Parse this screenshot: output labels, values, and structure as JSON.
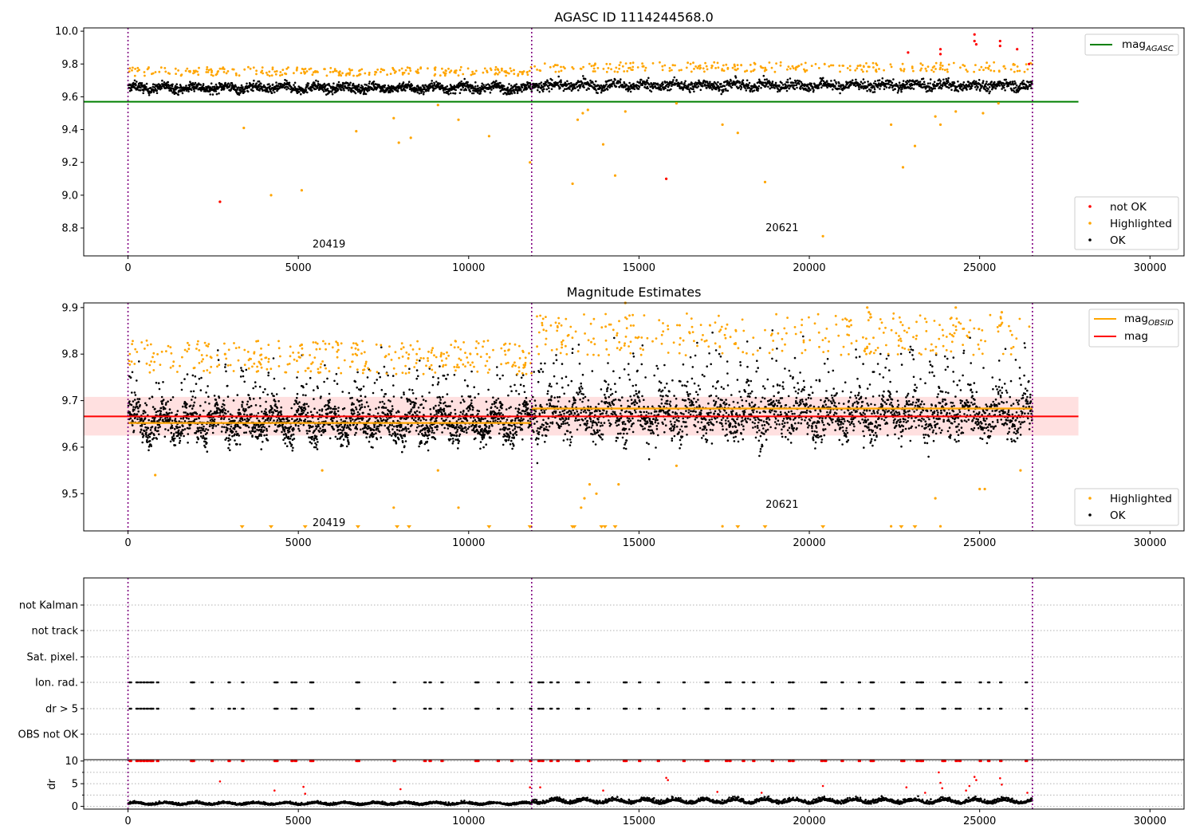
{
  "figure": {
    "title": "AGASC ID 1114244568.0"
  },
  "chart_data": [
    {
      "id": "agasc-magnitude",
      "type": "scatter",
      "title": "AGASC ID 1114244568.0",
      "xlim": [
        -1300,
        31000
      ],
      "ylim": [
        8.63,
        10.02
      ],
      "x_ticks": [
        0,
        5000,
        10000,
        15000,
        20000,
        25000,
        30000
      ],
      "y_ticks": [
        8.8,
        9.0,
        9.2,
        9.4,
        9.6,
        9.8,
        10.0
      ],
      "obsid_boundaries": [
        0,
        11850,
        26550
      ],
      "obsid_labels": [
        {
          "text": "20419",
          "x": 5900,
          "y": 8.68
        },
        {
          "text": "20621",
          "x": 19200,
          "y": 8.78
        }
      ],
      "mag_agasc": {
        "value": 9.57,
        "x_range": [
          -1300,
          27900
        ],
        "color": "#008000"
      },
      "ok_band": [
        {
          "x_range": [
            0,
            11850
          ],
          "center": 9.655,
          "spread": 0.045
        },
        {
          "x_range": [
            11850,
            26550
          ],
          "center": 9.67,
          "spread": 0.05
        }
      ],
      "highlighted_points": {
        "x": [
          2700,
          3400,
          4200,
          5100,
          6700,
          7800,
          7950,
          8300,
          9100,
          9700,
          10600,
          11800,
          13050,
          13200,
          13350,
          13500,
          13950,
          14300,
          14600,
          15800,
          16100,
          17450,
          17900,
          18700,
          20400,
          22400,
          22750,
          23100,
          23700,
          23850,
          24300,
          25100,
          25550
        ],
        "y": [
          8.96,
          9.41,
          9.0,
          9.03,
          9.39,
          9.47,
          9.32,
          9.35,
          9.55,
          9.46,
          9.36,
          9.2,
          9.07,
          9.46,
          9.5,
          9.52,
          9.31,
          9.12,
          9.51,
          9.1,
          9.56,
          9.43,
          9.38,
          9.08,
          8.75,
          9.43,
          9.17,
          9.3,
          9.48,
          9.43,
          9.51,
          9.5,
          9.56
        ]
      },
      "not_ok_points": {
        "x": [
          2700,
          15800,
          22900,
          23850,
          23850,
          24850,
          24850,
          24900,
          25600,
          25600,
          26100,
          26450
        ],
        "y": [
          8.96,
          9.1,
          9.87,
          9.89,
          9.86,
          9.98,
          9.94,
          9.92,
          9.94,
          9.91,
          9.89,
          9.8
        ]
      },
      "legend_lines": [
        {
          "label": "mag",
          "subscript": "AGASC",
          "color": "#008000"
        }
      ],
      "legend_markers": [
        {
          "label": "not OK",
          "color": "#ff0000"
        },
        {
          "label": "Highlighted",
          "color": "#ffa500"
        },
        {
          "label": "OK",
          "color": "#000000"
        }
      ]
    },
    {
      "id": "magnitude-estimates",
      "type": "scatter",
      "title": "Magnitude Estimates",
      "xlim": [
        -1300,
        31000
      ],
      "ylim": [
        9.42,
        9.91
      ],
      "x_ticks": [
        0,
        5000,
        10000,
        15000,
        20000,
        25000,
        30000
      ],
      "y_ticks": [
        9.5,
        9.6,
        9.7,
        9.8,
        9.9
      ],
      "obsid_boundaries": [
        0,
        11850,
        26550
      ],
      "obsid_labels": [
        {
          "text": "20419",
          "x": 5900,
          "y": 9.43
        },
        {
          "text": "20621",
          "x": 19200,
          "y": 9.47
        }
      ],
      "mag": {
        "value": 9.666,
        "band": [
          9.625,
          9.708
        ],
        "x_range": [
          -1300,
          27900
        ],
        "color": "#ff0000"
      },
      "mag_obsid": [
        {
          "x_range": [
            0,
            11850
          ],
          "value": 9.652
        },
        {
          "x_range": [
            11850,
            26550
          ],
          "value": 9.683
        }
      ],
      "ok_band": [
        {
          "x_range": [
            0,
            11850
          ],
          "center": 9.655,
          "spread": 0.06
        },
        {
          "x_range": [
            11850,
            26550
          ],
          "center": 9.67,
          "spread": 0.075
        }
      ],
      "highlighted_points": {
        "x": [
          800,
          2850,
          5100,
          5700,
          7800,
          9100,
          9700,
          13300,
          13400,
          13550,
          13750,
          14400,
          16100,
          17450,
          22400,
          23700,
          23850,
          25000,
          25150,
          26200,
          25650,
          24300,
          21750,
          21700,
          14600
        ],
        "y": [
          9.54,
          9.8,
          9.82,
          9.55,
          9.47,
          9.55,
          9.47,
          9.47,
          9.49,
          9.52,
          9.5,
          9.52,
          9.56,
          9.43,
          9.43,
          9.49,
          9.43,
          9.51,
          9.51,
          9.55,
          9.89,
          9.9,
          9.89,
          9.9,
          9.91
        ]
      },
      "low_markers_x": [
        3350,
        4200,
        5200,
        6750,
        7900,
        8250,
        10600,
        11800,
        13050,
        13100,
        13900,
        14000,
        14300,
        17900,
        18700,
        20400,
        22700,
        23100
      ],
      "legend_lines": [
        {
          "label": "mag",
          "subscript": "OBSID",
          "color": "#ffa500"
        },
        {
          "label": "mag",
          "subscript": "",
          "color": "#ff0000"
        }
      ],
      "legend_markers": [
        {
          "label": "Highlighted",
          "color": "#ffa500"
        },
        {
          "label": "OK",
          "color": "#000000"
        }
      ]
    },
    {
      "id": "flags",
      "type": "scatter",
      "xlim": [
        -1300,
        31000
      ],
      "categories": [
        "not Kalman",
        "not track",
        "Sat. pixel.",
        "Ion. rad.",
        "dr > 5",
        "OBS not OK"
      ],
      "obsid_boundaries": [
        0,
        11850,
        26550
      ],
      "flag_rows": {
        "Ion. rad.": [
          50,
          250,
          350,
          450,
          550,
          650,
          700,
          850,
          1850,
          1900,
          2450,
          2950,
          3350,
          4300,
          4350,
          4800,
          4900,
          5350,
          5400,
          6700,
          6750,
          7800,
          8700,
          8850,
          9200,
          10200,
          10250,
          10850,
          11250,
          11800,
          12050,
          12150,
          12400,
          12600,
          13150,
          13200,
          13500,
          14550,
          14600,
          15000,
          15550,
          16300,
          16950,
          17000,
          17550,
          17650,
          18050,
          18350,
          18900,
          19400,
          19500,
          20350,
          20450,
          20950,
          21450,
          21800,
          21850,
          22700,
          22750,
          23150,
          23250,
          23300,
          23900,
          23950,
          24300,
          24400,
          25000,
          25250,
          25600,
          26350
        ],
        "dr > 5": [
          50,
          250,
          350,
          450,
          550,
          650,
          700,
          850,
          1850,
          1900,
          2450,
          2950,
          3100,
          3350,
          4300,
          4350,
          4800,
          4900,
          5350,
          5400,
          6700,
          6750,
          7800,
          8700,
          8850,
          9200,
          10200,
          10250,
          10850,
          11250,
          11800,
          12050,
          12150,
          12400,
          12600,
          13150,
          13200,
          13500,
          14550,
          14600,
          15000,
          15550,
          16300,
          16950,
          17000,
          17550,
          17650,
          18050,
          18350,
          18900,
          19400,
          19500,
          20350,
          20450,
          20950,
          21450,
          21800,
          21850,
          22700,
          22750,
          23150,
          23250,
          23300,
          23900,
          23950,
          24300,
          24400,
          25000,
          25250,
          25600,
          26350
        ]
      }
    },
    {
      "id": "dr",
      "type": "scatter",
      "xlim": [
        -1300,
        31000
      ],
      "ylim": [
        -0.6,
        10.3
      ],
      "ylabel": "dr",
      "x_ticks": [
        0,
        5000,
        10000,
        15000,
        20000,
        25000,
        30000
      ],
      "y_ticks": [
        0,
        5,
        10
      ],
      "obsid_boundaries": [
        0,
        11850,
        26550
      ],
      "clipped_red_x": [
        50,
        250,
        350,
        450,
        550,
        650,
        700,
        850,
        1850,
        1900,
        2450,
        2950,
        3350,
        4300,
        4350,
        4800,
        4900,
        5350,
        5400,
        6700,
        6750,
        7800,
        8700,
        8850,
        9200,
        10200,
        10250,
        10850,
        11250,
        11800,
        12050,
        12150,
        12400,
        12600,
        13150,
        13200,
        13500,
        14550,
        14600,
        15000,
        15550,
        16300,
        16950,
        17000,
        17550,
        17650,
        18050,
        18350,
        18900,
        19400,
        19500,
        20350,
        20450,
        20950,
        21450,
        21800,
        21850,
        22700,
        22750,
        23150,
        23250,
        23300,
        23900,
        23950,
        24300,
        24400,
        25000,
        25250,
        25600,
        26350
      ],
      "mid_red_points": {
        "x": [
          2700,
          4300,
          5150,
          5200,
          8000,
          11800,
          12100,
          13950,
          15800,
          15850,
          17300,
          18600,
          20400,
          22850,
          23400,
          23800,
          23850,
          23900,
          24600,
          24700,
          24850,
          24900,
          25600,
          25650,
          26400
        ],
        "y": [
          5.5,
          3.5,
          4.3,
          2.8,
          3.8,
          4.2,
          4.2,
          3.5,
          6.3,
          5.8,
          3.2,
          3.0,
          4.5,
          4.2,
          3.0,
          7.5,
          5.2,
          4.0,
          3.5,
          4.5,
          6.5,
          5.8,
          6.2,
          4.8,
          3.0
        ]
      },
      "ok_band": [
        {
          "x_range": [
            0,
            11850
          ],
          "center": 0.7,
          "spread": 0.6
        },
        {
          "x_range": [
            11850,
            26550
          ],
          "center": 1.3,
          "spread": 1.1
        }
      ]
    }
  ]
}
